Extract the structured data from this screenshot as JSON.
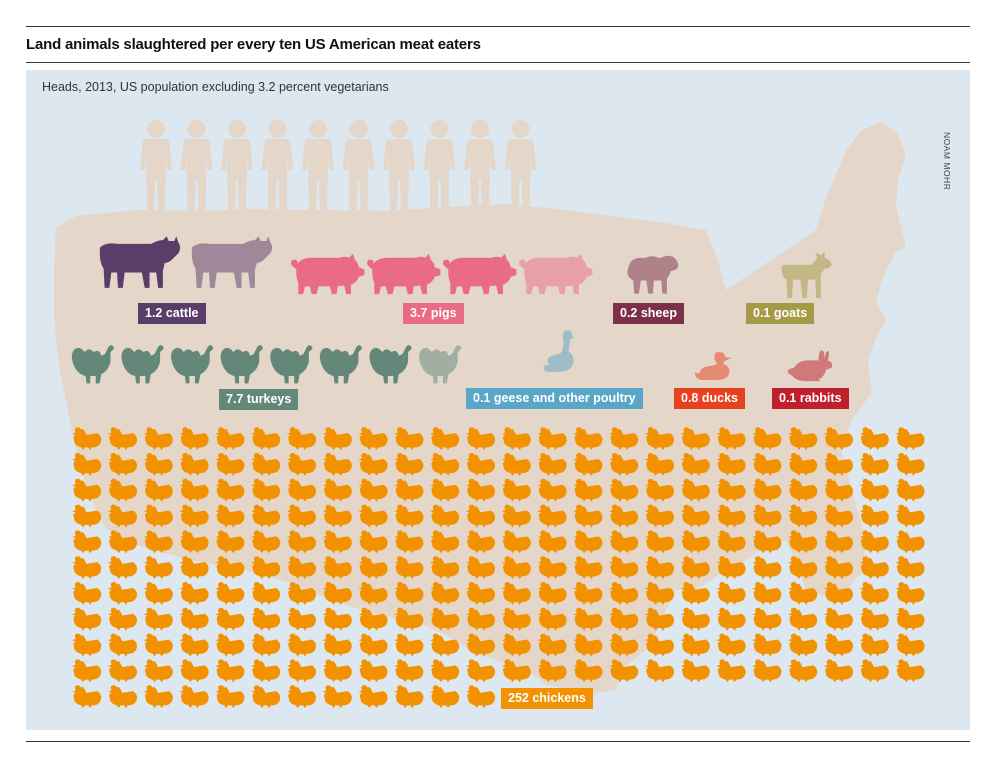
{
  "title": "Land animals slaughtered per every ten US American meat eaters",
  "subtitle": "Heads, 2013, US population excluding 3.2 percent vegetarians",
  "credit": "NOAM MOHR",
  "colors": {
    "panel": "#dde7ef",
    "map": "#e4d6c9",
    "people": "#e4d6c9",
    "cattle": "#5b3d6a",
    "pigs": "#e96b84",
    "sheep": "#7e2f4a",
    "goats": "#a59a45",
    "turkeys": "#63887a",
    "geese": "#5aa6c8",
    "ducks": "#e8411f",
    "rabbits": "#c01f2c",
    "chickens": "#f39200"
  },
  "people": {
    "count": 10,
    "icon": "person-icon"
  },
  "chart_data": {
    "type": "pictogram",
    "title": "Land animals slaughtered per every ten US American meat eaters",
    "subtitle": "Heads, 2013, US population excluding 3.2 percent vegetarians",
    "unit": "heads per ten meat eaters",
    "categories": [
      "cattle",
      "pigs",
      "sheep",
      "goats",
      "turkeys",
      "geese and other poultry",
      "ducks",
      "rabbits",
      "chickens"
    ],
    "values": [
      1.2,
      3.7,
      0.2,
      0.1,
      7.7,
      0.1,
      0.8,
      0.1,
      252
    ],
    "labels": {
      "cattle": "1.2 cattle",
      "pigs": "3.7 pigs",
      "sheep": "0.2 sheep",
      "goats": "0.1 goats",
      "turkeys": "7.7 turkeys",
      "geese": "0.1 geese and other poultry",
      "ducks": "0.8 ducks",
      "rabbits": "0.1 rabbits",
      "chickens": "252 chickens"
    }
  }
}
